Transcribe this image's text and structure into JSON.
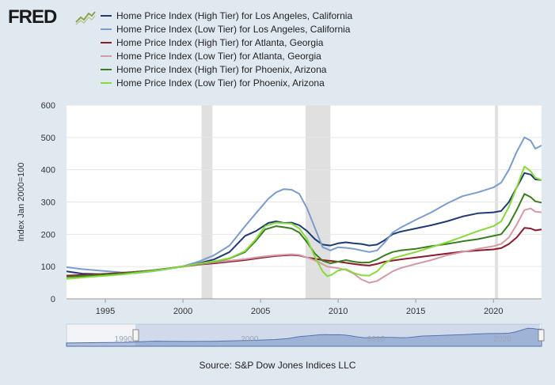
{
  "logo": {
    "text": "FRED"
  },
  "source": "Source: S&P Dow Jones Indices LLC",
  "chart_data": {
    "type": "line",
    "ylabel": "Index Jan 2000=100",
    "xlabel": "",
    "ylim": [
      0,
      600
    ],
    "xlim": [
      1992.5,
      2023.1
    ],
    "y_ticks": [
      0,
      100,
      200,
      300,
      400,
      500,
      600
    ],
    "x_ticks": [
      1995,
      2000,
      2005,
      2010,
      2015,
      2020
    ],
    "grid": "horizontal",
    "legend_position": "top",
    "recessions": [
      [
        2001.2,
        2001.9
      ],
      [
        2007.9,
        2009.5
      ],
      [
        2020.1,
        2020.3
      ]
    ],
    "navigator_labels": [
      "1990",
      "2000",
      "2010",
      "2020"
    ],
    "series": [
      {
        "name": "Home Price Index (High Tier) for Los Angeles, California",
        "color": "#1f3b73",
        "points": [
          [
            1992.5,
            85
          ],
          [
            1993.5,
            78
          ],
          [
            1995,
            76
          ],
          [
            1997,
            80
          ],
          [
            1998,
            86
          ],
          [
            1999,
            93
          ],
          [
            2000,
            101
          ],
          [
            2001,
            110
          ],
          [
            2002,
            122
          ],
          [
            2003,
            145
          ],
          [
            2004,
            195
          ],
          [
            2004.7,
            210
          ],
          [
            2005.5,
            235
          ],
          [
            2006,
            240
          ],
          [
            2006.5,
            235
          ],
          [
            2007,
            236
          ],
          [
            2007.5,
            228
          ],
          [
            2008,
            210
          ],
          [
            2008.5,
            185
          ],
          [
            2009,
            168
          ],
          [
            2009.5,
            165
          ],
          [
            2010,
            172
          ],
          [
            2010.5,
            175
          ],
          [
            2011,
            172
          ],
          [
            2011.5,
            170
          ],
          [
            2012,
            165
          ],
          [
            2012.5,
            168
          ],
          [
            2013,
            182
          ],
          [
            2013.5,
            200
          ],
          [
            2014,
            208
          ],
          [
            2015,
            218
          ],
          [
            2016,
            228
          ],
          [
            2017,
            240
          ],
          [
            2018,
            255
          ],
          [
            2019,
            265
          ],
          [
            2020,
            268
          ],
          [
            2020.5,
            272
          ],
          [
            2021,
            300
          ],
          [
            2021.5,
            345
          ],
          [
            2022,
            390
          ],
          [
            2022.4,
            385
          ],
          [
            2022.7,
            370
          ],
          [
            2023.1,
            368
          ]
        ]
      },
      {
        "name": "Home Price Index (Low Tier) for Los Angeles, California",
        "color": "#7b9ccc",
        "points": [
          [
            1992.5,
            98
          ],
          [
            1993.5,
            92
          ],
          [
            1995,
            86
          ],
          [
            1996,
            82
          ],
          [
            1997,
            80
          ],
          [
            1998,
            85
          ],
          [
            1999,
            92
          ],
          [
            2000,
            101
          ],
          [
            2001,
            115
          ],
          [
            2002,
            135
          ],
          [
            2003,
            165
          ],
          [
            2004,
            225
          ],
          [
            2004.7,
            265
          ],
          [
            2005.5,
            310
          ],
          [
            2006,
            330
          ],
          [
            2006.5,
            340
          ],
          [
            2007,
            338
          ],
          [
            2007.5,
            325
          ],
          [
            2008,
            280
          ],
          [
            2008.5,
            220
          ],
          [
            2009,
            160
          ],
          [
            2009.5,
            150
          ],
          [
            2010,
            160
          ],
          [
            2010.5,
            158
          ],
          [
            2011,
            155
          ],
          [
            2011.5,
            150
          ],
          [
            2012,
            145
          ],
          [
            2012.5,
            150
          ],
          [
            2013,
            175
          ],
          [
            2013.5,
            205
          ],
          [
            2014,
            220
          ],
          [
            2015,
            245
          ],
          [
            2016,
            268
          ],
          [
            2017,
            295
          ],
          [
            2018,
            318
          ],
          [
            2019,
            330
          ],
          [
            2020,
            345
          ],
          [
            2020.5,
            360
          ],
          [
            2021,
            400
          ],
          [
            2021.5,
            455
          ],
          [
            2022,
            500
          ],
          [
            2022.4,
            490
          ],
          [
            2022.7,
            465
          ],
          [
            2023.1,
            475
          ]
        ]
      },
      {
        "name": "Home Price Index (High Tier) for Atlanta, Georgia",
        "color": "#8b1a2b",
        "points": [
          [
            1992.5,
            72
          ],
          [
            1994,
            75
          ],
          [
            1996,
            80
          ],
          [
            1998,
            88
          ],
          [
            2000,
            100
          ],
          [
            2001,
            106
          ],
          [
            2002,
            110
          ],
          [
            2003,
            115
          ],
          [
            2004,
            120
          ],
          [
            2005,
            127
          ],
          [
            2006,
            133
          ],
          [
            2007,
            136
          ],
          [
            2007.5,
            134
          ],
          [
            2008,
            128
          ],
          [
            2009,
            120
          ],
          [
            2010,
            115
          ],
          [
            2011,
            108
          ],
          [
            2011.5,
            105
          ],
          [
            2012,
            103
          ],
          [
            2012.5,
            108
          ],
          [
            2013,
            115
          ],
          [
            2014,
            122
          ],
          [
            2015,
            128
          ],
          [
            2016,
            134
          ],
          [
            2017,
            140
          ],
          [
            2018,
            146
          ],
          [
            2019,
            150
          ],
          [
            2020,
            153
          ],
          [
            2020.5,
            157
          ],
          [
            2021,
            170
          ],
          [
            2021.5,
            190
          ],
          [
            2022,
            220
          ],
          [
            2022.4,
            218
          ],
          [
            2022.7,
            212
          ],
          [
            2023.1,
            215
          ]
        ]
      },
      {
        "name": "Home Price Index (Low Tier) for Atlanta, Georgia",
        "color": "#d49aa6",
        "points": [
          [
            1992.5,
            68
          ],
          [
            1994,
            72
          ],
          [
            1996,
            78
          ],
          [
            1998,
            88
          ],
          [
            2000,
            100
          ],
          [
            2001,
            107
          ],
          [
            2002,
            113
          ],
          [
            2003,
            118
          ],
          [
            2004,
            123
          ],
          [
            2005,
            130
          ],
          [
            2006,
            135
          ],
          [
            2007,
            138
          ],
          [
            2007.5,
            136
          ],
          [
            2008,
            128
          ],
          [
            2008.7,
            115
          ],
          [
            2009.3,
            100
          ],
          [
            2010,
            95
          ],
          [
            2010.5,
            90
          ],
          [
            2011,
            78
          ],
          [
            2011.5,
            60
          ],
          [
            2012,
            50
          ],
          [
            2012.5,
            55
          ],
          [
            2013,
            70
          ],
          [
            2013.5,
            85
          ],
          [
            2014,
            95
          ],
          [
            2015,
            108
          ],
          [
            2016,
            120
          ],
          [
            2017,
            135
          ],
          [
            2018,
            145
          ],
          [
            2019,
            155
          ],
          [
            2020,
            163
          ],
          [
            2020.5,
            170
          ],
          [
            2021,
            190
          ],
          [
            2021.5,
            230
          ],
          [
            2022,
            275
          ],
          [
            2022.4,
            280
          ],
          [
            2022.7,
            270
          ],
          [
            2023.1,
            268
          ]
        ]
      },
      {
        "name": "Home Price Index (High Tier) for Phoenix, Arizona",
        "color": "#3a7d1e",
        "points": [
          [
            1992.5,
            68
          ],
          [
            1994,
            72
          ],
          [
            1996,
            78
          ],
          [
            1998,
            88
          ],
          [
            2000,
            100
          ],
          [
            2001,
            108
          ],
          [
            2002,
            115
          ],
          [
            2003,
            125
          ],
          [
            2004,
            145
          ],
          [
            2004.7,
            180
          ],
          [
            2005.3,
            215
          ],
          [
            2006,
            225
          ],
          [
            2006.5,
            222
          ],
          [
            2007,
            218
          ],
          [
            2007.5,
            205
          ],
          [
            2008,
            175
          ],
          [
            2008.5,
            140
          ],
          [
            2009,
            118
          ],
          [
            2009.5,
            110
          ],
          [
            2010,
            115
          ],
          [
            2010.5,
            120
          ],
          [
            2011,
            115
          ],
          [
            2011.5,
            112
          ],
          [
            2012,
            113
          ],
          [
            2012.5,
            122
          ],
          [
            2013,
            135
          ],
          [
            2013.5,
            145
          ],
          [
            2014,
            150
          ],
          [
            2015,
            155
          ],
          [
            2016,
            163
          ],
          [
            2017,
            170
          ],
          [
            2018,
            178
          ],
          [
            2019,
            185
          ],
          [
            2020,
            195
          ],
          [
            2020.5,
            200
          ],
          [
            2021,
            230
          ],
          [
            2021.5,
            275
          ],
          [
            2022,
            325
          ],
          [
            2022.4,
            315
          ],
          [
            2022.7,
            302
          ],
          [
            2023.1,
            298
          ]
        ]
      },
      {
        "name": "Home Price Index (Low Tier) for Phoenix, Arizona",
        "color": "#88d93c",
        "points": [
          [
            1992.5,
            62
          ],
          [
            1994,
            68
          ],
          [
            1996,
            75
          ],
          [
            1998,
            86
          ],
          [
            2000,
            100
          ],
          [
            2001,
            109
          ],
          [
            2002,
            116
          ],
          [
            2003,
            126
          ],
          [
            2004,
            148
          ],
          [
            2004.7,
            185
          ],
          [
            2005.3,
            225
          ],
          [
            2006,
            236
          ],
          [
            2006.5,
            234
          ],
          [
            2007,
            233
          ],
          [
            2007.5,
            218
          ],
          [
            2008,
            185
          ],
          [
            2008.5,
            130
          ],
          [
            2009,
            85
          ],
          [
            2009.3,
            70
          ],
          [
            2009.6,
            75
          ],
          [
            2010,
            88
          ],
          [
            2010.5,
            92
          ],
          [
            2011,
            80
          ],
          [
            2011.5,
            73
          ],
          [
            2012,
            72
          ],
          [
            2012.5,
            85
          ],
          [
            2013,
            110
          ],
          [
            2013.5,
            125
          ],
          [
            2014,
            132
          ],
          [
            2015,
            145
          ],
          [
            2016,
            160
          ],
          [
            2017,
            175
          ],
          [
            2018,
            192
          ],
          [
            2019,
            210
          ],
          [
            2020,
            225
          ],
          [
            2020.5,
            240
          ],
          [
            2021,
            285
          ],
          [
            2021.5,
            345
          ],
          [
            2022,
            410
          ],
          [
            2022.4,
            395
          ],
          [
            2022.7,
            375
          ],
          [
            2023.1,
            368
          ]
        ]
      }
    ]
  }
}
